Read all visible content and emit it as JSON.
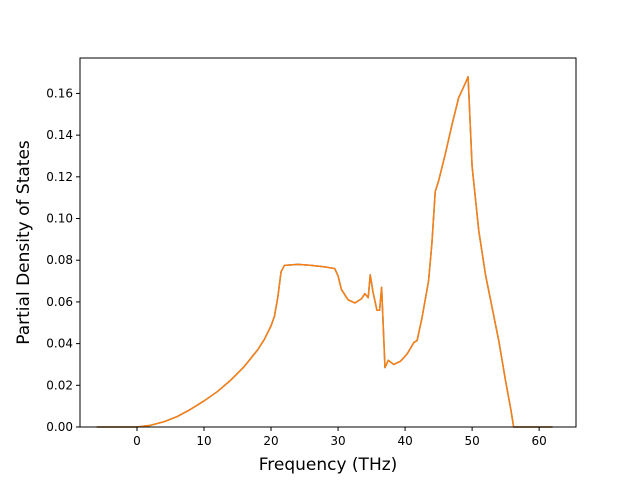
{
  "chart_data": {
    "type": "line",
    "title": "",
    "xlabel": "Frequency (THz)",
    "ylabel": "Partial Density of States",
    "xlim": [
      -8.5,
      65.5
    ],
    "ylim": [
      0.0,
      0.177
    ],
    "xticks": [
      0,
      10,
      20,
      30,
      40,
      50,
      60
    ],
    "yticks": [
      0.0,
      0.02,
      0.04,
      0.06,
      0.08,
      0.1,
      0.12,
      0.14,
      0.16
    ],
    "xtick_labels": [
      "0",
      "10",
      "20",
      "30",
      "40",
      "50",
      "60"
    ],
    "ytick_labels": [
      "0.00",
      "0.02",
      "0.04",
      "0.06",
      "0.08",
      "0.10",
      "0.12",
      "0.14",
      "0.16"
    ],
    "grid": false,
    "colors": {
      "series_a": "#1f77b4",
      "series_b": "#ff7f0e",
      "axes": "#000000"
    },
    "series": [
      {
        "x": [
          -6,
          -3,
          0,
          2,
          4,
          6,
          8,
          10,
          12,
          14,
          16,
          18,
          19,
          20,
          20.5,
          21,
          21.5,
          22,
          24,
          26,
          28,
          29.5,
          30,
          30.5,
          31.5,
          32.5,
          33.5,
          34,
          34.5,
          34.8,
          35.2,
          35.8,
          36.2,
          36.5,
          37.0,
          37.5,
          38.3,
          39.3,
          40.3,
          41.3,
          41.8,
          42.5,
          43.5,
          44.0,
          44.5,
          45.0,
          46.0,
          47.0,
          48.0,
          49.0,
          49.4,
          50.0,
          51.0,
          52.0,
          53.0,
          54.0,
          55.0,
          55.8,
          56.2,
          56.6,
          57.5,
          60.0,
          62.0
        ],
        "y": [
          0.0,
          0.0,
          0.0,
          0.0008,
          0.0025,
          0.005,
          0.0085,
          0.0125,
          0.017,
          0.0225,
          0.029,
          0.037,
          0.042,
          0.0485,
          0.053,
          0.062,
          0.0745,
          0.0775,
          0.078,
          0.0775,
          0.0768,
          0.076,
          0.0725,
          0.066,
          0.061,
          0.0595,
          0.0615,
          0.064,
          0.062,
          0.073,
          0.065,
          0.056,
          0.056,
          0.067,
          0.0285,
          0.032,
          0.03,
          0.0315,
          0.035,
          0.0405,
          0.0415,
          0.052,
          0.07,
          0.088,
          0.113,
          0.118,
          0.131,
          0.145,
          0.158,
          0.165,
          0.168,
          0.125,
          0.094,
          0.073,
          0.057,
          0.041,
          0.022,
          0.008,
          0.0,
          0.0,
          0.0,
          0.0,
          0.0
        ]
      },
      {
        "x": [
          -6,
          -3,
          0,
          2,
          4,
          6,
          8,
          10,
          12,
          14,
          16,
          18,
          19,
          20,
          20.5,
          21,
          21.5,
          22,
          24,
          26,
          28,
          29.5,
          30,
          30.5,
          31.5,
          32.5,
          33.5,
          34,
          34.5,
          34.8,
          35.2,
          35.8,
          36.2,
          36.5,
          37.0,
          37.5,
          38.3,
          39.3,
          40.3,
          41.3,
          41.8,
          42.5,
          43.5,
          44.0,
          44.5,
          45.0,
          46.0,
          47.0,
          48.0,
          49.0,
          49.4,
          50.0,
          51.0,
          52.0,
          53.0,
          54.0,
          55.0,
          55.8,
          56.2,
          56.6,
          57.5,
          60.0,
          62.0
        ],
        "y": [
          0.0,
          0.0,
          0.0,
          0.0008,
          0.0025,
          0.005,
          0.0085,
          0.0125,
          0.017,
          0.0225,
          0.029,
          0.037,
          0.042,
          0.0485,
          0.053,
          0.062,
          0.0745,
          0.0775,
          0.078,
          0.0775,
          0.0768,
          0.076,
          0.0725,
          0.066,
          0.061,
          0.0595,
          0.0615,
          0.064,
          0.062,
          0.073,
          0.065,
          0.056,
          0.056,
          0.067,
          0.0285,
          0.032,
          0.03,
          0.0315,
          0.035,
          0.0405,
          0.0415,
          0.052,
          0.07,
          0.088,
          0.113,
          0.118,
          0.131,
          0.145,
          0.158,
          0.165,
          0.168,
          0.125,
          0.094,
          0.073,
          0.057,
          0.041,
          0.022,
          0.008,
          0.0,
          0.0,
          0.0,
          0.0,
          0.0
        ]
      }
    ]
  }
}
